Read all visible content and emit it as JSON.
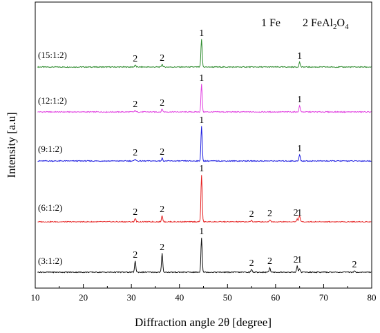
{
  "chart_data": {
    "type": "line",
    "title": "",
    "xlabel": "Diffraction angle 2θ [degree]",
    "ylabel": "Intensity [a.u]",
    "xlim": [
      10,
      80
    ],
    "xticks": [
      "10",
      "20",
      "30",
      "40",
      "50",
      "60",
      "70",
      "80"
    ],
    "grid": false,
    "legend": {
      "placement": "top-right",
      "entries": [
        {
          "number": "1",
          "phase": "Fe"
        },
        {
          "number": "2",
          "phase_main": "FeAl",
          "sub1": "2",
          "mid": "O",
          "sub2": "4"
        }
      ]
    },
    "series": [
      {
        "name": "(15:1:2)",
        "color": "#2e8b2e",
        "peaks": [
          {
            "x": 30.8,
            "height": 3
          },
          {
            "x": 36.4,
            "height": 4
          },
          {
            "x": 44.6,
            "height": 40
          },
          {
            "x": 65.0,
            "height": 7
          }
        ],
        "labels": [
          {
            "x": 30.8,
            "text": "2"
          },
          {
            "x": 36.4,
            "text": "2"
          },
          {
            "x": 44.6,
            "text": "1"
          },
          {
            "x": 65.0,
            "text": "1"
          }
        ]
      },
      {
        "name": "(12:1:2)",
        "color": "#e040e0",
        "peaks": [
          {
            "x": 30.8,
            "height": 2
          },
          {
            "x": 36.4,
            "height": 4
          },
          {
            "x": 44.6,
            "height": 40
          },
          {
            "x": 65.0,
            "height": 9
          }
        ],
        "labels": [
          {
            "x": 30.8,
            "text": "2"
          },
          {
            "x": 36.4,
            "text": "2"
          },
          {
            "x": 44.6,
            "text": "1"
          },
          {
            "x": 65.0,
            "text": "1"
          }
        ]
      },
      {
        "name": "(9:1:2)",
        "color": "#1c1ce0",
        "peaks": [
          {
            "x": 30.8,
            "height": 3
          },
          {
            "x": 36.4,
            "height": 4
          },
          {
            "x": 44.6,
            "height": 50
          },
          {
            "x": 65.0,
            "height": 9
          }
        ],
        "labels": [
          {
            "x": 30.8,
            "text": "2"
          },
          {
            "x": 36.4,
            "text": "2"
          },
          {
            "x": 44.6,
            "text": "1"
          },
          {
            "x": 65.0,
            "text": "1"
          }
        ]
      },
      {
        "name": "(6:1:2)",
        "color": "#e52020",
        "peaks": [
          {
            "x": 30.8,
            "height": 5
          },
          {
            "x": 36.4,
            "height": 9
          },
          {
            "x": 44.6,
            "height": 68
          },
          {
            "x": 55.0,
            "height": 2
          },
          {
            "x": 58.8,
            "height": 3
          },
          {
            "x": 64.5,
            "height": 4
          },
          {
            "x": 65.0,
            "height": 9
          }
        ],
        "labels": [
          {
            "x": 30.8,
            "text": "2"
          },
          {
            "x": 36.4,
            "text": "2"
          },
          {
            "x": 44.6,
            "text": "1"
          },
          {
            "x": 55.0,
            "text": "2"
          },
          {
            "x": 58.8,
            "text": "2"
          },
          {
            "x": 64.2,
            "text": "2"
          },
          {
            "x": 65.0,
            "text": "1"
          }
        ]
      },
      {
        "name": "(3:1:2)",
        "color": "#111111",
        "peaks": [
          {
            "x": 30.8,
            "height": 16
          },
          {
            "x": 36.4,
            "height": 27
          },
          {
            "x": 44.6,
            "height": 50
          },
          {
            "x": 55.0,
            "height": 4
          },
          {
            "x": 58.8,
            "height": 7
          },
          {
            "x": 64.5,
            "height": 9
          },
          {
            "x": 65.0,
            "height": 5
          },
          {
            "x": 76.4,
            "height": 2
          }
        ],
        "labels": [
          {
            "x": 30.8,
            "text": "2"
          },
          {
            "x": 36.4,
            "text": "2"
          },
          {
            "x": 44.6,
            "text": "1"
          },
          {
            "x": 55.0,
            "text": "2"
          },
          {
            "x": 58.8,
            "text": "2"
          },
          {
            "x": 64.2,
            "text": "2"
          },
          {
            "x": 65.0,
            "text": "1"
          },
          {
            "x": 76.4,
            "text": "2"
          }
        ]
      }
    ]
  }
}
